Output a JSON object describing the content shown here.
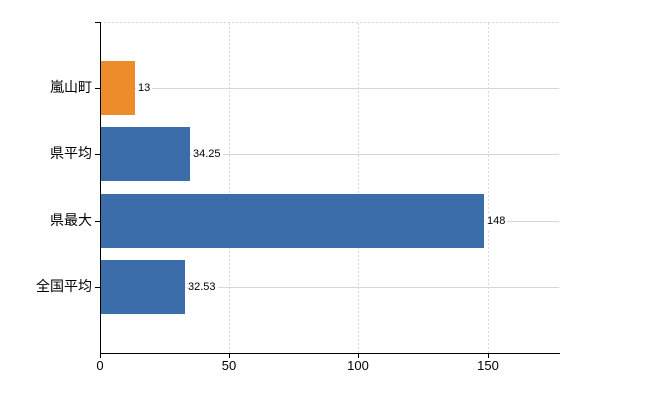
{
  "chart_data": {
    "type": "bar",
    "orientation": "horizontal",
    "title": "",
    "categories": [
      "嵐山町",
      "県平均",
      "県最大",
      "全国平均"
    ],
    "values": [
      13,
      34.25,
      148,
      32.53
    ],
    "value_labels": [
      "13",
      "34.25",
      "148",
      "32.53"
    ],
    "bar_colors": [
      "#ee8c2d",
      "#3b6dab",
      "#3b6dab",
      "#3b6dab"
    ],
    "x_ticks": [
      0,
      50,
      100,
      150
    ],
    "x_tick_labels": [
      "0",
      "50",
      "100",
      "150"
    ],
    "xlim": [
      0,
      177.6
    ],
    "grid": {
      "vertical": "dashed",
      "horizontal": "solid",
      "top_border": "dashed"
    },
    "legend": "none",
    "colors": {
      "axis": "#000000",
      "text": "#000000",
      "grid_h": "#d2d9d2",
      "grid_v": "#d8d3d9",
      "background": "#ffffff"
    }
  }
}
